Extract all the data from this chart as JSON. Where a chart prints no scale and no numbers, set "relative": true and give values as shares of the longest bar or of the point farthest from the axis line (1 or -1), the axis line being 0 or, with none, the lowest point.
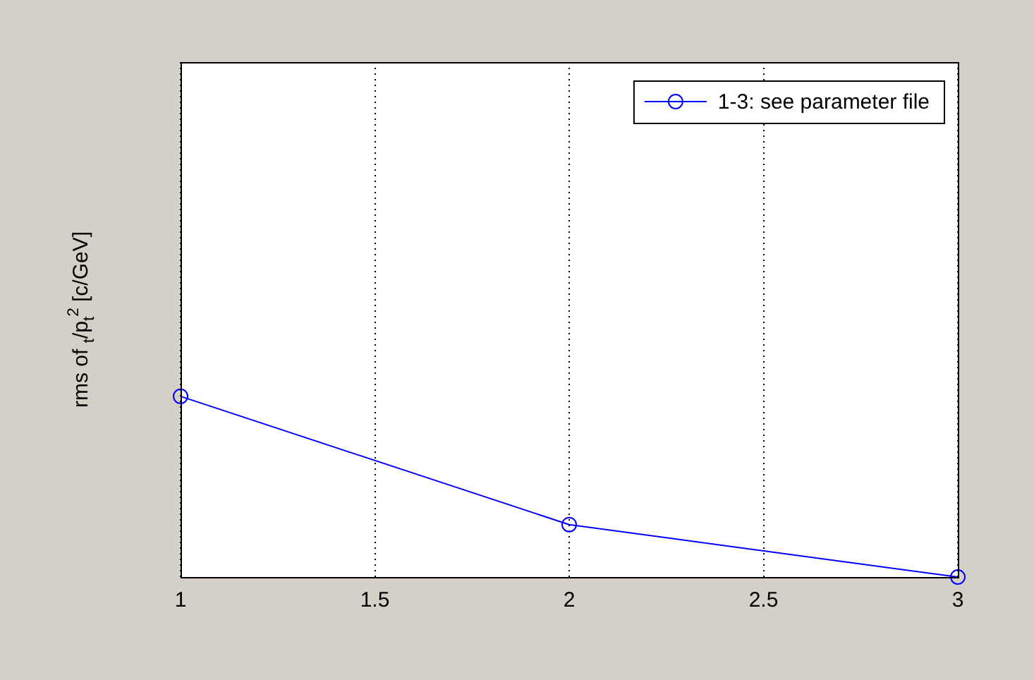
{
  "chart_data": {
    "type": "line",
    "relative": true,
    "ylabel": "rms of $_{t}$/p$_{t}$$^{2}$ [c/GeV]",
    "x": [
      1,
      2,
      3
    ],
    "xlim": [
      1,
      3
    ],
    "xticks": [
      1,
      1.5,
      2,
      2.5,
      3
    ],
    "series": [
      {
        "name": "1-3: see parameter file",
        "color": "#0000ff",
        "values": [
          1,
          0.29,
          0
        ]
      }
    ],
    "grid": "x",
    "legend": "top right",
    "marker": "circle",
    "line_style": "solid"
  }
}
